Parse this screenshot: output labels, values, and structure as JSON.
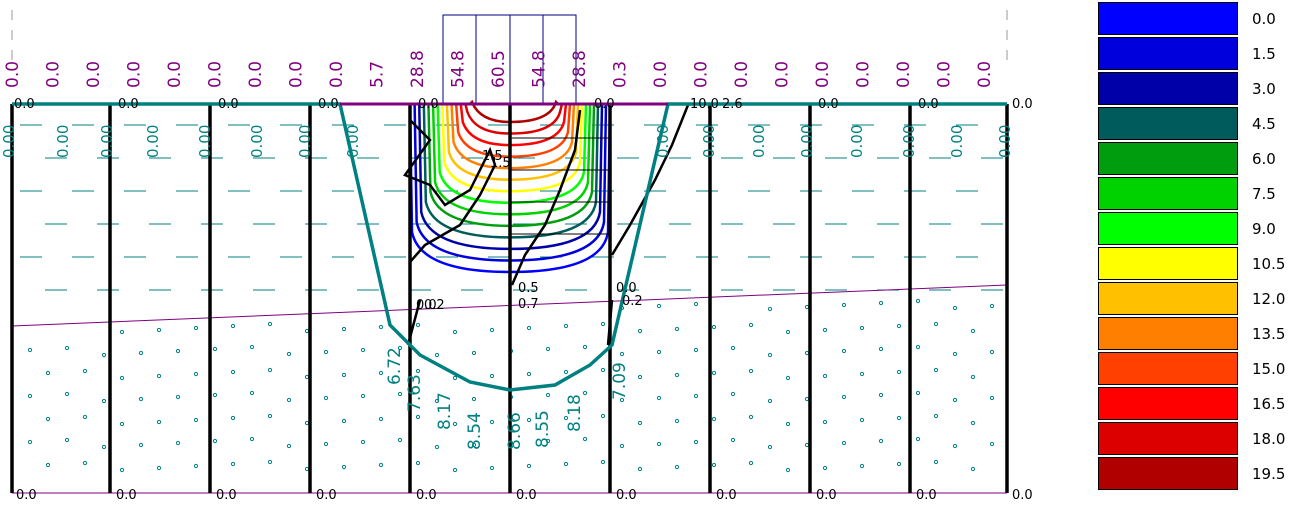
{
  "top_load_labels": [
    "0.0",
    "0.0",
    "0.0",
    "0.0",
    "0.0",
    "0.0",
    "0.0",
    "0.0",
    "0.0",
    "5.7",
    "28.8",
    "54.8",
    "60.5",
    "54.8",
    "28.8",
    "0.3",
    "0.0",
    "0.0",
    "0.0",
    "0.0",
    "0.0",
    "0.0",
    "0.0",
    "0.0",
    "0.0"
  ],
  "surface_labels": [
    "0.0",
    "0.0",
    "0.0",
    "0.0",
    "0.0",
    "0.0",
    "10.0",
    "2.6",
    "0.0",
    "0.0",
    "0.0",
    "0.0"
  ],
  "pile_top_labels": [
    "0.00",
    "0.00",
    "0.00",
    "0.00",
    "0.00",
    "0.00",
    "0.00",
    "0.00",
    "0.00",
    "0.00",
    "0.00",
    "0.00",
    "0.00",
    "0.00",
    "0.00",
    "0.00",
    "0.00",
    "0.00",
    "0.00",
    "0.00"
  ],
  "mid_labels": [
    "1.5",
    "1.5",
    "0.5",
    "0.7",
    "0.0",
    "0.2",
    "0.0",
    "0.2"
  ],
  "bowl_labels": [
    "6.72",
    "7.63",
    "8.17",
    "8.54",
    "8.66",
    "8.55",
    "8.18",
    "7.09"
  ],
  "bottom_labels": [
    "0.0",
    "0.0",
    "0.0",
    "0.0",
    "0.0",
    "0.0",
    "0.0",
    "0.0",
    "0.0",
    "0.0",
    "0.0"
  ],
  "legend": [
    {
      "label": "0.0",
      "color": "#0000ff"
    },
    {
      "label": "1.5",
      "color": "#0000dd"
    },
    {
      "label": "3.0",
      "color": "#0000a8"
    },
    {
      "label": "4.5",
      "color": "#005c5c"
    },
    {
      "label": "6.0",
      "color": "#009e0f"
    },
    {
      "label": "7.5",
      "color": "#00d200"
    },
    {
      "label": "9.0",
      "color": "#00ff00"
    },
    {
      "label": "10.5",
      "color": "#ffff00"
    },
    {
      "label": "12.0",
      "color": "#ffc000"
    },
    {
      "label": "13.5",
      "color": "#ff8000"
    },
    {
      "label": "15.0",
      "color": "#ff4000"
    },
    {
      "label": "16.5",
      "color": "#ff0000"
    },
    {
      "label": "18.0",
      "color": "#dd0000"
    },
    {
      "label": "19.5",
      "color": "#b00000"
    }
  ],
  "colors": {
    "teal": "#008080",
    "purple": "#800080",
    "black": "#000000",
    "navy": "#000080"
  }
}
